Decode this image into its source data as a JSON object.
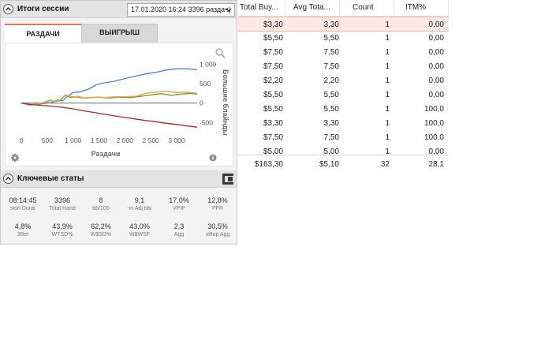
{
  "session_panel": {
    "title": "Итоги сессии",
    "session_select_value": "17.01.2020 16:24 3396 раздач)",
    "tabs": [
      {
        "label": "РАЗДАЧИ",
        "active": true
      },
      {
        "label": "ВЫИГРЫШ",
        "active": false
      }
    ]
  },
  "chart_data": {
    "type": "line",
    "xlabel": "Раздачи",
    "ylabel": "Большие блайнды",
    "x_ticks": [
      "0",
      "500",
      "1 000",
      "1 500",
      "2 000",
      "2 500",
      "3 000"
    ],
    "y_ticks": [
      "1 000",
      "500",
      "0",
      "-500"
    ],
    "xlim": [
      0,
      3396
    ],
    "ylim": [
      -900,
      1250
    ],
    "colors": {
      "blue": "#4f7fe0",
      "green": "#7a9a2c",
      "orange": "#e6a54a",
      "red": "#a52a2a",
      "zero": "#888888"
    },
    "series": [
      {
        "color": "blue",
        "points": [
          [
            0,
            0
          ],
          [
            150,
            -50
          ],
          [
            300,
            -40
          ],
          [
            450,
            -10
          ],
          [
            600,
            20
          ],
          [
            700,
            80
          ],
          [
            800,
            60
          ],
          [
            900,
            180
          ],
          [
            1000,
            270
          ],
          [
            1150,
            290
          ],
          [
            1300,
            360
          ],
          [
            1450,
            470
          ],
          [
            1600,
            520
          ],
          [
            1800,
            560
          ],
          [
            2000,
            630
          ],
          [
            2200,
            690
          ],
          [
            2400,
            750
          ],
          [
            2600,
            790
          ],
          [
            2800,
            850
          ],
          [
            3000,
            880
          ],
          [
            3200,
            880
          ],
          [
            3396,
            860
          ]
        ]
      },
      {
        "color": "green",
        "points": [
          [
            0,
            0
          ],
          [
            150,
            -40
          ],
          [
            300,
            -20
          ],
          [
            450,
            0
          ],
          [
            550,
            70
          ],
          [
            650,
            40
          ],
          [
            750,
            60
          ],
          [
            850,
            200
          ],
          [
            950,
            140
          ],
          [
            1050,
            160
          ],
          [
            1200,
            130
          ],
          [
            1350,
            140
          ],
          [
            1500,
            150
          ],
          [
            1700,
            130
          ],
          [
            1900,
            150
          ],
          [
            2100,
            140
          ],
          [
            2300,
            170
          ],
          [
            2500,
            210
          ],
          [
            2700,
            240
          ],
          [
            2900,
            200
          ],
          [
            3100,
            230
          ],
          [
            3250,
            250
          ],
          [
            3396,
            230
          ]
        ]
      },
      {
        "color": "orange",
        "points": [
          [
            0,
            0
          ],
          [
            150,
            -30
          ],
          [
            300,
            -30
          ],
          [
            450,
            20
          ],
          [
            550,
            80
          ],
          [
            650,
            40
          ],
          [
            750,
            80
          ],
          [
            850,
            210
          ],
          [
            950,
            160
          ],
          [
            1100,
            170
          ],
          [
            1250,
            120
          ],
          [
            1400,
            150
          ],
          [
            1600,
            140
          ],
          [
            1800,
            160
          ],
          [
            2000,
            160
          ],
          [
            2200,
            170
          ],
          [
            2400,
            250
          ],
          [
            2600,
            280
          ],
          [
            2800,
            300
          ],
          [
            3000,
            270
          ],
          [
            3200,
            280
          ],
          [
            3396,
            250
          ]
        ]
      },
      {
        "color": "red",
        "points": [
          [
            0,
            0
          ],
          [
            200,
            -40
          ],
          [
            400,
            -60
          ],
          [
            600,
            -80
          ],
          [
            800,
            -110
          ],
          [
            1000,
            -150
          ],
          [
            1200,
            -200
          ],
          [
            1400,
            -240
          ],
          [
            1600,
            -290
          ],
          [
            1800,
            -330
          ],
          [
            2000,
            -370
          ],
          [
            2200,
            -410
          ],
          [
            2400,
            -450
          ],
          [
            2600,
            -480
          ],
          [
            2800,
            -520
          ],
          [
            3000,
            -550
          ],
          [
            3200,
            -590
          ],
          [
            3396,
            -620
          ]
        ]
      }
    ]
  },
  "key_stats": {
    "title": "Ключевые статы",
    "items": [
      {
        "value": "08:14:45",
        "label": "sion Durat"
      },
      {
        "value": "3396",
        "label": "Total Hand"
      },
      {
        "value": "8",
        "label": "bb/100"
      },
      {
        "value": "9,1",
        "label": "-in Adj bb/"
      },
      {
        "value": "17,0%",
        "label": "VPIP"
      },
      {
        "value": "12,8%",
        "label": "PFR"
      },
      {
        "value": "4,8%",
        "label": "3Bet"
      },
      {
        "value": "43,9%",
        "label": "WTSD%"
      },
      {
        "value": "62,2%",
        "label": "W$SD%"
      },
      {
        "value": "43,0%",
        "label": "W$WSF"
      },
      {
        "value": "2,3",
        "label": "Agg"
      },
      {
        "value": "30,5%",
        "label": "stflop Agg"
      }
    ]
  },
  "table": {
    "columns": [
      "Total Buy...",
      "Avg Tota...",
      "Count",
      "ITM%"
    ],
    "rows": [
      [
        "$3,30",
        "3,30",
        "1",
        "0,00"
      ],
      [
        "$5,50",
        "5,50",
        "1",
        "0,00"
      ],
      [
        "$7,50",
        "7,50",
        "1",
        "0,00"
      ],
      [
        "$7,50",
        "7,50",
        "1",
        "0,00"
      ],
      [
        "$2,20",
        "2,20",
        "1",
        "0,00"
      ],
      [
        "$5,50",
        "5,50",
        "1",
        "0,00"
      ],
      [
        "$5,50",
        "5,50",
        "1",
        "100,0"
      ],
      [
        "$3,30",
        "3,30",
        "1",
        "100,0"
      ],
      [
        "$7,50",
        "7,50",
        "1",
        "100,0"
      ],
      [
        "$5,00",
        "5,00",
        "1",
        "0,00"
      ]
    ],
    "totals": [
      "$163,30",
      "$5,10",
      "32",
      "28,1"
    ]
  }
}
